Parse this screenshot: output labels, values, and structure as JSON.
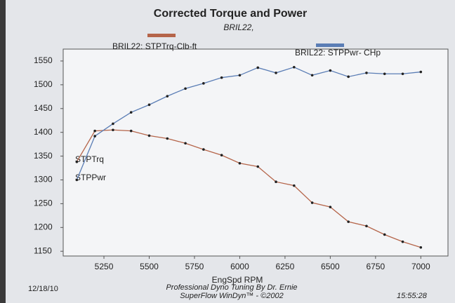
{
  "chart_data": {
    "type": "line",
    "title": "Corrected Torque and Power",
    "subtitle": "BRIL22,",
    "x_label": "EngSpd RPM",
    "x": [
      5100,
      5200,
      5300,
      5400,
      5500,
      5600,
      5700,
      5800,
      5900,
      6000,
      6100,
      6200,
      6300,
      6400,
      6500,
      6600,
      6700,
      6800,
      6900,
      7000
    ],
    "series": [
      {
        "name": "BRIL22: STPTrq-Clb-ft",
        "color": "#b5654a",
        "values": [
          1338,
          1403,
          1405,
          1403,
          1393,
          1387,
          1377,
          1364,
          1352,
          1335,
          1328,
          1296,
          1288,
          1252,
          1243,
          1212,
          1203,
          1185,
          1170,
          1158
        ]
      },
      {
        "name": "BRIL22: STPPwr- CHp",
        "color": "#5a7db5",
        "values": [
          1300,
          1392,
          1418,
          1442,
          1458,
          1476,
          1492,
          1503,
          1515,
          1520,
          1536,
          1525,
          1537,
          1520,
          1530,
          1517,
          1525,
          1523,
          1523,
          1527
        ]
      }
    ],
    "annotations": [
      "STPTrq",
      "STPPwr"
    ],
    "xlim": [
      5025,
      7150
    ],
    "ylim": [
      1140,
      1575
    ],
    "xticks": [
      5250,
      5500,
      5750,
      6000,
      6250,
      6500,
      6750,
      7000
    ],
    "yticks": [
      1150,
      1200,
      1250,
      1300,
      1350,
      1400,
      1450,
      1500,
      1550
    ],
    "footer": [
      "Professional Dyno Tuning By Dr. Ernie",
      "SuperFlow WinDyn™ - ©2002"
    ],
    "date": "12/18/10",
    "time": "15:55:28"
  }
}
